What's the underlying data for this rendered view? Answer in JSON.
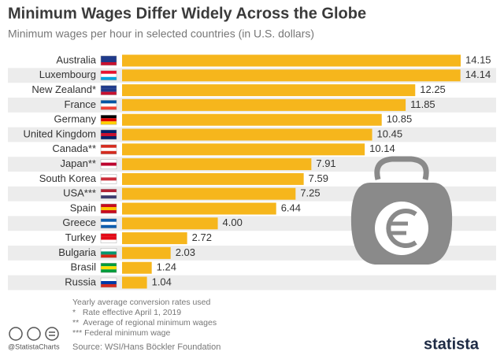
{
  "chart_data": {
    "type": "bar",
    "orientation": "horizontal",
    "title": "Minimum Wages Differ Widely Across the Globe",
    "subtitle": "Minimum wages per hour in selected countries (in U.S. dollars)",
    "categories": [
      "Australia",
      "Luxembourg",
      "New Zealand*",
      "France",
      "Germany",
      "United Kingdom",
      "Canada**",
      "Japan**",
      "South Korea",
      "USA***",
      "Spain",
      "Greece",
      "Turkey",
      "Bulgaria",
      "Brasil",
      "Russia"
    ],
    "values": [
      14.15,
      14.14,
      12.25,
      11.85,
      10.85,
      10.45,
      10.14,
      7.91,
      7.59,
      7.25,
      6.44,
      4.0,
      2.72,
      2.03,
      1.24,
      1.04
    ],
    "value_labels": [
      "14.15",
      "14.14",
      "12.25",
      "11.85",
      "10.85",
      "10.45",
      "10.14",
      "7.91",
      "7.59",
      "7.25",
      "6.44",
      "4.00",
      "2.72",
      "2.03",
      "1.24",
      "1.04"
    ],
    "color": "#f6b61c",
    "notes": [
      "Yearly average conversion rates used",
      "*   Rate effective April 1, 2019",
      "**  Average of regional minimum wages",
      "*** Federal minimum wage"
    ],
    "source": "Source: WSI/Hans Böckler Foundation",
    "handle": "@StatistaCharts",
    "brand": "statista"
  }
}
